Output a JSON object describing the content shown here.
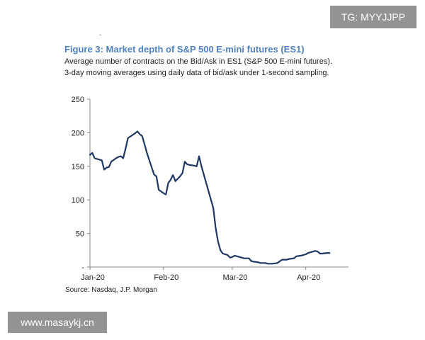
{
  "header": {
    "dot": "-"
  },
  "watermarks": {
    "top": "TG: MYYJJPP",
    "bottom": "www.masaykj.cn"
  },
  "chart_data": {
    "type": "line",
    "title": "Figure 3: Market depth of S&P 500 E-mini futures (ES1)",
    "subtitle": "Average number of contracts on the Bid/Ask in ES1 (S&P 500 E-mini futures). 3-day moving averages using daily data of bid/ask under 1-second sampling.",
    "source": "Source: Nasdaq, J.P. Morgan",
    "xlabel": "",
    "ylabel": "",
    "ylim": [
      0,
      250
    ],
    "yticks": [
      "-",
      "50",
      "100",
      "150",
      "200",
      "250"
    ],
    "xticks": [
      {
        "label": "Jan-20",
        "day": 0
      },
      {
        "label": "Feb-20",
        "day": 31
      },
      {
        "label": "Mar-20",
        "day": 60
      },
      {
        "label": "Apr-20",
        "day": 91
      }
    ],
    "xlim": [
      0,
      109
    ],
    "line_color": "#1f3864",
    "series": [
      {
        "name": "ES1 market depth",
        "points": [
          [
            0,
            167
          ],
          [
            1,
            170
          ],
          [
            2,
            162
          ],
          [
            3,
            161
          ],
          [
            5,
            159
          ],
          [
            6,
            145
          ],
          [
            7,
            148
          ],
          [
            8,
            149
          ],
          [
            9,
            157
          ],
          [
            11,
            162
          ],
          [
            12,
            164
          ],
          [
            13,
            165
          ],
          [
            14,
            162
          ],
          [
            15,
            176
          ],
          [
            16,
            192
          ],
          [
            19,
            199
          ],
          [
            20,
            202
          ],
          [
            21,
            198
          ],
          [
            22,
            195
          ],
          [
            23,
            183
          ],
          [
            24,
            170
          ],
          [
            27,
            138
          ],
          [
            28,
            135
          ],
          [
            29,
            115
          ],
          [
            31,
            110
          ],
          [
            32,
            108
          ],
          [
            33,
            125
          ],
          [
            34,
            130
          ],
          [
            35,
            137
          ],
          [
            36,
            128
          ],
          [
            38,
            135
          ],
          [
            39,
            140
          ],
          [
            40,
            157
          ],
          [
            41,
            153
          ],
          [
            42,
            152
          ],
          [
            44,
            151
          ],
          [
            45,
            150
          ],
          [
            46,
            165
          ],
          [
            47,
            150
          ],
          [
            50,
            113
          ],
          [
            52,
            88
          ],
          [
            53,
            58
          ],
          [
            54,
            38
          ],
          [
            55,
            25
          ],
          [
            56,
            20
          ],
          [
            57,
            19
          ],
          [
            58,
            18
          ],
          [
            59,
            14
          ],
          [
            60,
            15
          ],
          [
            61,
            17
          ],
          [
            62,
            16
          ],
          [
            64,
            14
          ],
          [
            65,
            13
          ],
          [
            67,
            13
          ],
          [
            68,
            9
          ],
          [
            69,
            8
          ],
          [
            71,
            7
          ],
          [
            72,
            6
          ],
          [
            74,
            6
          ],
          [
            75,
            5
          ],
          [
            77,
            5
          ],
          [
            79,
            6
          ],
          [
            81,
            11
          ],
          [
            83,
            11
          ],
          [
            84,
            12
          ],
          [
            86,
            13
          ],
          [
            87,
            16
          ],
          [
            89,
            17
          ],
          [
            91,
            19
          ],
          [
            92,
            21
          ],
          [
            94,
            23
          ],
          [
            95,
            24
          ],
          [
            96,
            23
          ],
          [
            97,
            20
          ],
          [
            98,
            20
          ],
          [
            100,
            21
          ],
          [
            101,
            21
          ]
        ]
      }
    ]
  }
}
